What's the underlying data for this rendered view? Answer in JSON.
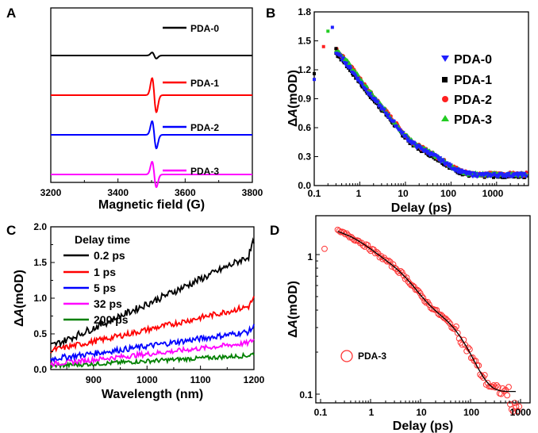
{
  "chart_data": [
    {
      "panel": "A",
      "type": "line",
      "xlabel": "Magnetic field (G)",
      "ylabel": "",
      "xlim": [
        3200,
        3800
      ],
      "xticks": [
        3200,
        3400,
        3600,
        3800
      ],
      "legend_placement": "right of each trace",
      "series": [
        {
          "name": "PDA-0",
          "color": "#000000",
          "center": 3508,
          "amplitude": 0.18,
          "linewidth": 0.06,
          "offset": 3.2
        },
        {
          "name": "PDA-1",
          "color": "#ff0000",
          "center": 3508,
          "amplitude": 1.0,
          "linewidth": 0.06,
          "offset": 2.2
        },
        {
          "name": "PDA-2",
          "color": "#0000ff",
          "center": 3508,
          "amplitude": 0.8,
          "linewidth": 0.06,
          "offset": 1.2
        },
        {
          "name": "PDA-3",
          "color": "#ff00ff",
          "center": 3508,
          "amplitude": 0.75,
          "linewidth": 0.06,
          "offset": 0.2
        }
      ]
    },
    {
      "panel": "B",
      "type": "scatter",
      "xlabel": "Delay (ps)",
      "ylabel": "ΔA(mOD)",
      "xscale": "log",
      "xlim": [
        0.1,
        5000
      ],
      "ylim": [
        0,
        1.8
      ],
      "xticks": [
        0.1,
        1,
        10,
        100,
        1000
      ],
      "yticks": [
        0.0,
        0.3,
        0.6,
        0.9,
        1.2,
        1.5,
        1.8
      ],
      "legend_placement": "right",
      "series": [
        {
          "name": "PDA-0",
          "color": "#2020ff",
          "marker": "triangle-down",
          "peak": 1.62,
          "d": 0.006
        },
        {
          "name": "PDA-1",
          "color": "#000000",
          "marker": "square",
          "peak": 1.62,
          "d": 0.0
        },
        {
          "name": "PDA-2",
          "color": "#ff2020",
          "marker": "circle",
          "peak": 1.65,
          "d": 0.012
        },
        {
          "name": "PDA-3",
          "color": "#22cc22",
          "marker": "triangle-up",
          "peak": 1.66,
          "d": 0.01
        }
      ],
      "early_points": [
        {
          "x": 0.1,
          "y": 1.1
        },
        {
          "x": 0.1,
          "y": 1.16
        },
        {
          "x": 0.16,
          "y": 1.44
        },
        {
          "x": 0.2,
          "y": 1.6
        },
        {
          "x": 0.25,
          "y": 1.64
        },
        {
          "x": 0.3,
          "y": 1.42
        }
      ]
    },
    {
      "panel": "C",
      "type": "line",
      "xlabel": "Wavelength (nm)",
      "ylabel": "ΔA(mOD)",
      "xlim": [
        820,
        1200
      ],
      "ylim": [
        0,
        2.0
      ],
      "xticks": [
        900,
        1000,
        1100,
        1200
      ],
      "yticks": [
        0.0,
        0.5,
        1.0,
        1.5,
        2.0
      ],
      "legend_title": "Delay time",
      "legend_placement": "top-left",
      "series": [
        {
          "name": "0.2 ps",
          "color": "#000000",
          "start": 0.33,
          "end": 1.62,
          "noise": 0.05
        },
        {
          "name": "1 ps",
          "color": "#ff0000",
          "start": 0.27,
          "end": 0.9,
          "noise": 0.04
        },
        {
          "name": "5 ps",
          "color": "#0000ff",
          "start": 0.15,
          "end": 0.54,
          "noise": 0.04
        },
        {
          "name": "32 ps",
          "color": "#ff00ff",
          "start": 0.08,
          "end": 0.38,
          "noise": 0.035
        },
        {
          "name": "200 ps",
          "color": "#008000",
          "start": 0.05,
          "end": 0.2,
          "noise": 0.03
        }
      ]
    },
    {
      "panel": "D",
      "type": "scatter",
      "xlabel": "Delay (ps)",
      "ylabel": "ΔA(mOD)",
      "xscale": "log",
      "yscale": "log",
      "xlim": [
        0.1,
        1000
      ],
      "ylim": [
        0.1,
        1.8
      ],
      "xticks": [
        0.1,
        1,
        10,
        100,
        1000
      ],
      "yticks": [
        0.1,
        1
      ],
      "legend_placement": "lower-left",
      "series": [
        {
          "name": "PDA-3",
          "color": "#ff3333",
          "marker": "open-circle",
          "peak": 1.66
        }
      ],
      "fit": {
        "color": "#000000",
        "peak": 1.66
      }
    }
  ],
  "panel_labels": {
    "a": "A",
    "b": "B",
    "c": "C",
    "d": "D"
  },
  "tick_labels": {
    "a_x": [
      "3200",
      "3400",
      "3600",
      "3800"
    ],
    "b_x": [
      "0.1",
      "1",
      "10",
      "100",
      "1000"
    ],
    "b_y": [
      "0.0",
      "0.3",
      "0.6",
      "0.9",
      "1.2",
      "1.5",
      "1.8"
    ],
    "c_x": [
      "900",
      "1000",
      "1100",
      "1200"
    ],
    "c_y": [
      "0.0",
      "0.5",
      "1.0",
      "1.5",
      "2.0"
    ],
    "d_x": [
      "0.1",
      "1",
      "10",
      "100",
      "1000"
    ],
    "d_y": [
      "0.1",
      "1"
    ]
  },
  "axis_titles": {
    "a_x": "Magnetic field (G)",
    "b_x": "Delay (ps)",
    "b_y_delta": "Δ",
    "b_y_A": "A",
    "b_y_unit": "(mOD)",
    "c_x": "Wavelength (nm)",
    "c_y_delta": "Δ",
    "c_y_A": "A",
    "c_y_unit": "(mOD)",
    "d_x": "Delay (ps)",
    "d_y_delta": "Δ",
    "d_y_A": "A",
    "d_y_unit": "(mOD)"
  },
  "legends": {
    "a": [
      "PDA-0",
      "PDA-1",
      "PDA-2",
      "PDA-3"
    ],
    "b": [
      "PDA-0",
      "PDA-1",
      "PDA-2",
      "PDA-3"
    ],
    "c_title": "Delay time",
    "c": [
      "0.2 ps",
      "1 ps",
      "5 ps",
      "32 ps",
      "200 ps"
    ],
    "d": "PDA-3"
  }
}
